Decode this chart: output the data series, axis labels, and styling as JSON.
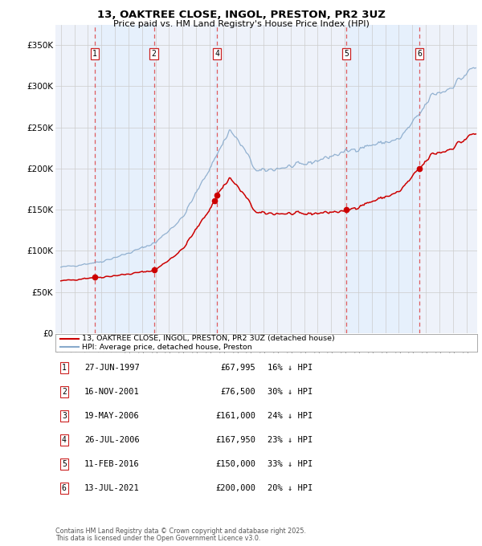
{
  "title": "13, OAKTREE CLOSE, INGOL, PRESTON, PR2 3UZ",
  "subtitle": "Price paid vs. HM Land Registry's House Price Index (HPI)",
  "legend_line1": "13, OAKTREE CLOSE, INGOL, PRESTON, PR2 3UZ (detached house)",
  "legend_line2": "HPI: Average price, detached house, Preston",
  "footer_line1": "Contains HM Land Registry data © Crown copyright and database right 2025.",
  "footer_line2": "This data is licensed under the Open Government Licence v3.0.",
  "transactions": [
    {
      "num": 1,
      "date": "1997-06-27",
      "price": 67995,
      "pct": "16%",
      "x": 1997.49
    },
    {
      "num": 2,
      "date": "2001-11-16",
      "price": 76500,
      "pct": "30%",
      "x": 2001.88
    },
    {
      "num": 3,
      "date": "2006-05-19",
      "price": 161000,
      "pct": "24%",
      "x": 2006.38
    },
    {
      "num": 4,
      "date": "2006-07-26",
      "price": 167950,
      "pct": "23%",
      "x": 2006.56
    },
    {
      "num": 5,
      "date": "2016-02-11",
      "price": 150000,
      "pct": "33%",
      "x": 2016.12
    },
    {
      "num": 6,
      "date": "2021-07-13",
      "price": 200000,
      "pct": "20%",
      "x": 2021.53
    }
  ],
  "table_rows": [
    {
      "num": 1,
      "date": "27-JUN-1997",
      "price": "£67,995",
      "pct": "16% ↓ HPI"
    },
    {
      "num": 2,
      "date": "16-NOV-2001",
      "price": "£76,500",
      "pct": "30% ↓ HPI"
    },
    {
      "num": 3,
      "date": "19-MAY-2006",
      "price": "£161,000",
      "pct": "24% ↓ HPI"
    },
    {
      "num": 4,
      "date": "26-JUL-2006",
      "price": "£167,950",
      "pct": "23% ↓ HPI"
    },
    {
      "num": 5,
      "date": "11-FEB-2016",
      "price": "£150,000",
      "pct": "33% ↓ HPI"
    },
    {
      "num": 6,
      "date": "13-JUL-2021",
      "price": "£200,000",
      "pct": "20% ↓ HPI"
    }
  ],
  "red_line_color": "#cc0000",
  "blue_line_color": "#88aacc",
  "bg_shade_color": "#ddeeff",
  "vline_color": "#dd4444",
  "grid_color": "#cccccc",
  "axis_bg": "#eef2fa",
  "ylim": [
    0,
    375000
  ],
  "xlim_start": 1994.6,
  "xlim_end": 2025.8,
  "yticks": [
    0,
    50000,
    100000,
    150000,
    200000,
    250000,
    300000,
    350000
  ],
  "ylabels": [
    "£0",
    "£50K",
    "£100K",
    "£150K",
    "£200K",
    "£250K",
    "£300K",
    "£350K"
  ]
}
